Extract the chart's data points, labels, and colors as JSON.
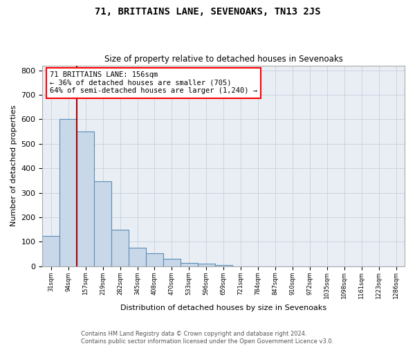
{
  "title": "71, BRITTAINS LANE, SEVENOAKS, TN13 2JS",
  "subtitle": "Size of property relative to detached houses in Sevenoaks",
  "xlabel": "Distribution of detached houses by size in Sevenoaks",
  "ylabel": "Number of detached properties",
  "footer_line1": "Contains HM Land Registry data © Crown copyright and database right 2024.",
  "footer_line2": "Contains public sector information licensed under the Open Government Licence v3.0.",
  "bar_labels": [
    "31sqm",
    "94sqm",
    "157sqm",
    "219sqm",
    "282sqm",
    "345sqm",
    "408sqm",
    "470sqm",
    "533sqm",
    "596sqm",
    "659sqm",
    "721sqm",
    "784sqm",
    "847sqm",
    "910sqm",
    "972sqm",
    "1035sqm",
    "1098sqm",
    "1161sqm",
    "1223sqm",
    "1286sqm"
  ],
  "bar_values": [
    125,
    600,
    550,
    348,
    150,
    75,
    52,
    30,
    15,
    10,
    5,
    0,
    0,
    0,
    0,
    0,
    0,
    0,
    0,
    0,
    0
  ],
  "bar_color": "#c8d8e8",
  "bar_edge_color": "#5b8db8",
  "property_line_index": 2,
  "property_line_color": "#aa0000",
  "annotation_text": "71 BRITTAINS LANE: 156sqm\n← 36% of detached houses are smaller (705)\n64% of semi-detached houses are larger (1,240) →",
  "ylim": [
    0,
    820
  ],
  "yticks": [
    0,
    100,
    200,
    300,
    400,
    500,
    600,
    700,
    800
  ],
  "grid_color": "#c8d0dc",
  "background_color": "#e8eef4",
  "fig_width": 6.0,
  "fig_height": 5.0,
  "dpi": 100
}
